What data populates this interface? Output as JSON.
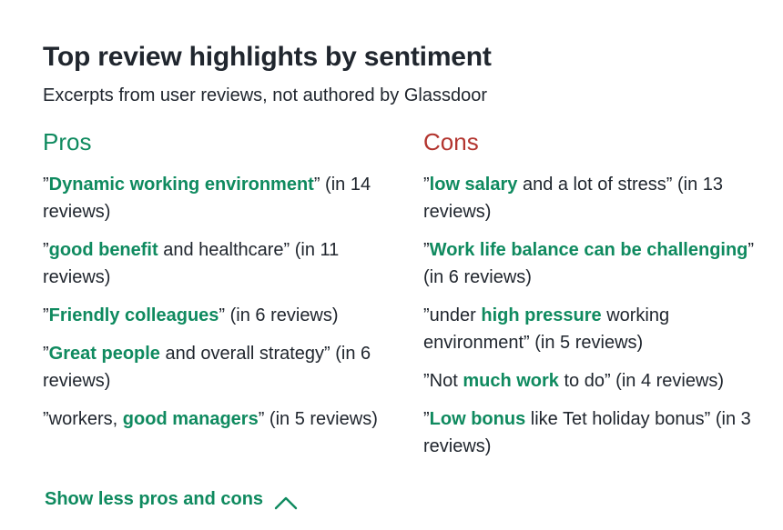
{
  "header": {
    "title": "Top review highlights by sentiment",
    "subtitle": "Excerpts from user reviews, not authored by Glassdoor"
  },
  "pros": {
    "heading": "Pros",
    "items": [
      {
        "pre": "”",
        "hl": "Dynamic working environment",
        "post": "” (in 14 reviews)"
      },
      {
        "pre": "”",
        "hl": "good benefit",
        "post": " and healthcare” (in 11 reviews)"
      },
      {
        "pre": "”",
        "hl": "Friendly colleagues",
        "post": "” (in 6 reviews)"
      },
      {
        "pre": "”",
        "hl": "Great people",
        "post": " and overall strategy” (in 6 reviews)"
      },
      {
        "pre": "”workers, ",
        "hl": "good managers",
        "post": "” (in 5 reviews)"
      }
    ]
  },
  "cons": {
    "heading": "Cons",
    "items": [
      {
        "pre": "”",
        "hl": "low salary",
        "post": " and a lot of stress” (in 13 reviews)"
      },
      {
        "pre": "”",
        "hl": "Work life balance can be challenging",
        "post": "” (in 6 reviews)"
      },
      {
        "pre": "”under ",
        "hl": "high pressure",
        "post": " working environment” (in 5 reviews)"
      },
      {
        "pre": "”Not ",
        "hl": "much work",
        "post": " to do” (in 4 reviews)"
      },
      {
        "pre": "”",
        "hl": "Low bonus",
        "post": " like Tet holiday bonus” (in 3 reviews)"
      }
    ]
  },
  "toggle": {
    "label": "Show less pros and cons",
    "icon": "chevron-up-icon"
  },
  "colors": {
    "pros_accent": "#0f8a5f",
    "cons_accent": "#b3352f",
    "text": "#20262e"
  }
}
